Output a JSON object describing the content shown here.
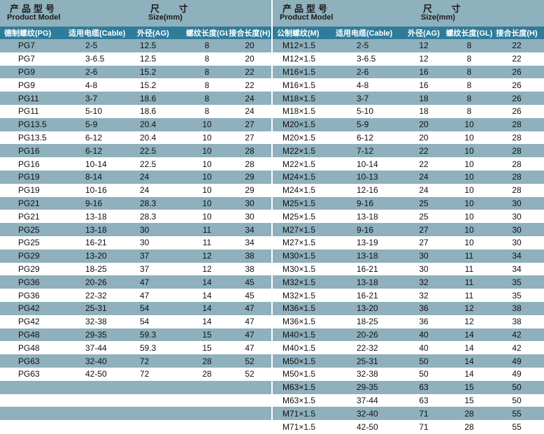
{
  "left": {
    "header": {
      "title_zh": "产品型号",
      "title_en": "Product Model",
      "size_zh": "尺 寸",
      "size_en": "Size(mm)"
    },
    "columns": [
      "德制螺纹(PG)",
      "适用电缆(Cable)",
      "外径(AG)",
      "螺纹长度(GL)",
      "接合长度(H)"
    ],
    "rows": [
      [
        "PG7",
        "2-5",
        "12.5",
        "8",
        "20"
      ],
      [
        "PG7",
        "3-6.5",
        "12.5",
        "8",
        "20"
      ],
      [
        "PG9",
        "2-6",
        "15.2",
        "8",
        "22"
      ],
      [
        "PG9",
        "4-8",
        "15.2",
        "8",
        "22"
      ],
      [
        "PG11",
        "3-7",
        "18.6",
        "8",
        "24"
      ],
      [
        "PG11",
        "5-10",
        "18.6",
        "8",
        "24"
      ],
      [
        "PG13.5",
        "5-9",
        "20.4",
        "10",
        "27"
      ],
      [
        "PG13.5",
        "6-12",
        "20.4",
        "10",
        "27"
      ],
      [
        "PG16",
        "6-12",
        "22.5",
        "10",
        "28"
      ],
      [
        "PG16",
        "10-14",
        "22.5",
        "10",
        "28"
      ],
      [
        "PG19",
        "8-14",
        "24",
        "10",
        "29"
      ],
      [
        "PG19",
        "10-16",
        "24",
        "10",
        "29"
      ],
      [
        "PG21",
        "9-16",
        "28.3",
        "10",
        "30"
      ],
      [
        "PG21",
        "13-18",
        "28.3",
        "10",
        "30"
      ],
      [
        "PG25",
        "13-18",
        "30",
        "11",
        "34"
      ],
      [
        "PG25",
        "16-21",
        "30",
        "11",
        "34"
      ],
      [
        "PG29",
        "13-20",
        "37",
        "12",
        "38"
      ],
      [
        "PG29",
        "18-25",
        "37",
        "12",
        "38"
      ],
      [
        "PG36",
        "20-26",
        "47",
        "14",
        "45"
      ],
      [
        "PG36",
        "22-32",
        "47",
        "14",
        "45"
      ],
      [
        "PG42",
        "25-31",
        "54",
        "14",
        "47"
      ],
      [
        "PG42",
        "32-38",
        "54",
        "14",
        "47"
      ],
      [
        "PG48",
        "29-35",
        "59.3",
        "15",
        "47"
      ],
      [
        "PG48",
        "37-44",
        "59.3",
        "15",
        "47"
      ],
      [
        "PG63",
        "32-40",
        "72",
        "28",
        "52"
      ],
      [
        "PG63",
        "42-50",
        "72",
        "28",
        "52"
      ],
      [
        "",
        "",
        "",
        "",
        ""
      ],
      [
        "",
        "",
        "",
        "",
        ""
      ],
      [
        "",
        "",
        "",
        "",
        ""
      ],
      [
        "",
        "",
        "",
        "",
        ""
      ]
    ]
  },
  "right": {
    "header": {
      "title_zh": "产品型号",
      "title_en": "Product Model",
      "size_zh": "尺 寸",
      "size_en": "Size(mm)"
    },
    "columns": [
      "公制螺纹(M)",
      "适用电缆(Cable)",
      "外径(AG)",
      "螺纹长度(GL)",
      "接合长度(H)"
    ],
    "rows": [
      [
        "M12×1.5",
        "2-5",
        "12",
        "8",
        "22"
      ],
      [
        "M12×1.5",
        "3-6.5",
        "12",
        "8",
        "22"
      ],
      [
        "M16×1.5",
        "2-6",
        "16",
        "8",
        "26"
      ],
      [
        "M16×1.5",
        "4-8",
        "16",
        "8",
        "26"
      ],
      [
        "M18×1.5",
        "3-7",
        "18",
        "8",
        "26"
      ],
      [
        "M18×1.5",
        "5-10",
        "18",
        "8",
        "26"
      ],
      [
        "M20×1.5",
        "5-9",
        "20",
        "10",
        "28"
      ],
      [
        "M20×1.5",
        "6-12",
        "20",
        "10",
        "28"
      ],
      [
        "M22×1.5",
        "7-12",
        "22",
        "10",
        "28"
      ],
      [
        "M22×1.5",
        "10-14",
        "22",
        "10",
        "28"
      ],
      [
        "M24×1.5",
        "10-13",
        "24",
        "10",
        "28"
      ],
      [
        "M24×1.5",
        "12-16",
        "24",
        "10",
        "28"
      ],
      [
        "M25×1.5",
        "9-16",
        "25",
        "10",
        "30"
      ],
      [
        "M25×1.5",
        "13-18",
        "25",
        "10",
        "30"
      ],
      [
        "M27×1.5",
        "9-16",
        "27",
        "10",
        "30"
      ],
      [
        "M27×1.5",
        "13-19",
        "27",
        "10",
        "30"
      ],
      [
        "M30×1.5",
        "13-18",
        "30",
        "11",
        "34"
      ],
      [
        "M30×1.5",
        "16-21",
        "30",
        "11",
        "34"
      ],
      [
        "M32×1.5",
        "13-18",
        "32",
        "11",
        "35"
      ],
      [
        "M32×1.5",
        "16-21",
        "32",
        "11",
        "35"
      ],
      [
        "M36×1.5",
        "13-20",
        "36",
        "12",
        "38"
      ],
      [
        "M36×1.5",
        "18-25",
        "36",
        "12",
        "38"
      ],
      [
        "M40×1.5",
        "20-26",
        "40",
        "14",
        "42"
      ],
      [
        "M40×1.5",
        "22-32",
        "40",
        "14",
        "42"
      ],
      [
        "M50×1.5",
        "25-31",
        "50",
        "14",
        "49"
      ],
      [
        "M50×1.5",
        "32-38",
        "50",
        "14",
        "49"
      ],
      [
        "M63×1.5",
        "29-35",
        "63",
        "15",
        "50"
      ],
      [
        "M63×1.5",
        "37-44",
        "63",
        "15",
        "50"
      ],
      [
        "M71×1.5",
        "32-40",
        "71",
        "28",
        "55"
      ],
      [
        "M71×1.5",
        "42-50",
        "71",
        "28",
        "55"
      ]
    ]
  }
}
